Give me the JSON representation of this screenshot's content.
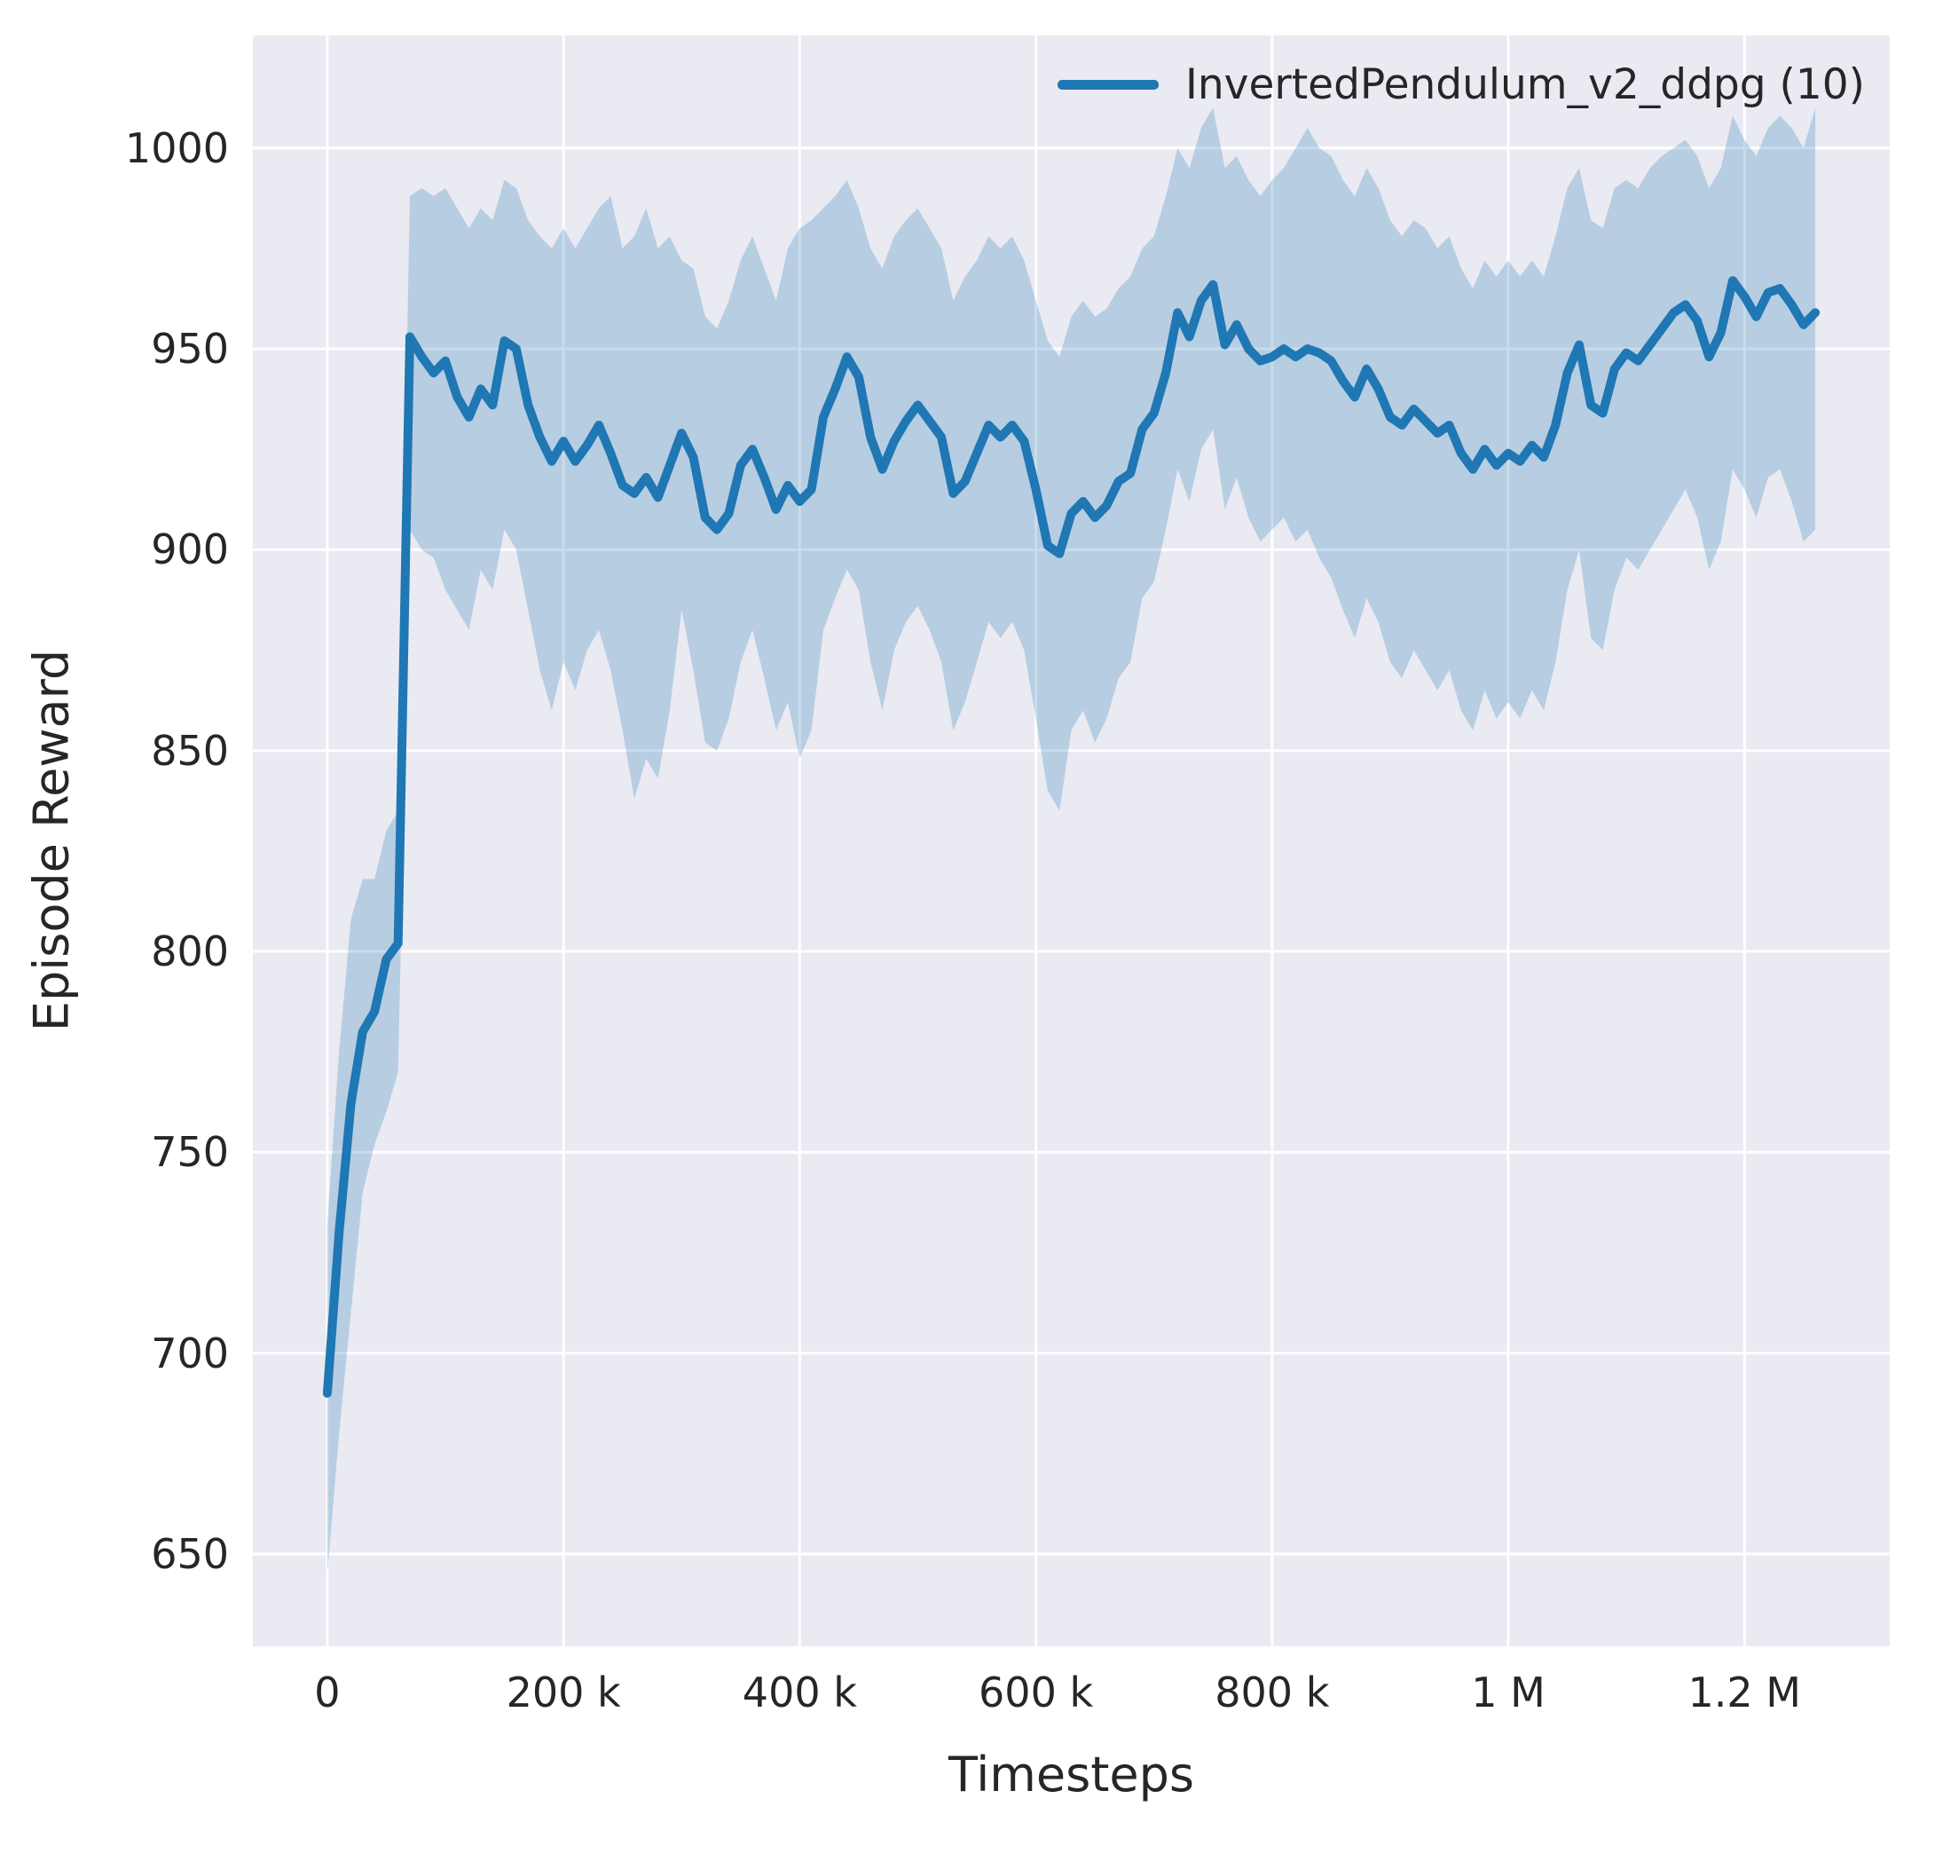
{
  "chart_data": {
    "type": "line",
    "title": "",
    "xlabel": "Timesteps",
    "ylabel": "Episode Reward",
    "legend_label": "InvertedPendulum_v2_ddpg (10)",
    "legend_position": "upper right",
    "grid": true,
    "xlim": [
      -63000,
      1323000
    ],
    "ylim": [
      627,
      1028
    ],
    "xticks": {
      "values": [
        0,
        200000,
        400000,
        600000,
        800000,
        1000000,
        1200000
      ],
      "labels": [
        "0",
        "200 k",
        "400 k",
        "600 k",
        "800 k",
        "1 M",
        "1.2 M"
      ]
    },
    "yticks": {
      "values": [
        650,
        700,
        750,
        800,
        850,
        900,
        950,
        1000
      ],
      "labels": [
        "650",
        "700",
        "750",
        "800",
        "850",
        "900",
        "950",
        "1000"
      ]
    },
    "colors": {
      "line": "#1f77b4",
      "band": "#1f77b4",
      "band_opacity": 0.25,
      "plot_background": "#eaeaf2",
      "grid": "#ffffff",
      "text": "#262626",
      "figure_background": "#ffffff"
    },
    "x": [
      0,
      10000,
      20000,
      30000,
      40000,
      50000,
      60000,
      70000,
      80000,
      90000,
      100000,
      110000,
      120000,
      130000,
      140000,
      150000,
      160000,
      170000,
      180000,
      190000,
      200000,
      210000,
      220000,
      230000,
      240000,
      250000,
      260000,
      270000,
      280000,
      290000,
      300000,
      310000,
      320000,
      330000,
      340000,
      350000,
      360000,
      370000,
      380000,
      390000,
      400000,
      410000,
      420000,
      430000,
      440000,
      450000,
      460000,
      470000,
      480000,
      490000,
      500000,
      510000,
      520000,
      530000,
      540000,
      550000,
      560000,
      570000,
      580000,
      590000,
      600000,
      610000,
      620000,
      630000,
      640000,
      650000,
      660000,
      670000,
      680000,
      690000,
      700000,
      710000,
      720000,
      730000,
      740000,
      750000,
      760000,
      770000,
      780000,
      790000,
      800000,
      810000,
      820000,
      830000,
      840000,
      850000,
      860000,
      870000,
      880000,
      890000,
      900000,
      910000,
      920000,
      930000,
      940000,
      950000,
      960000,
      970000,
      980000,
      990000,
      1000000,
      1010000,
      1020000,
      1030000,
      1040000,
      1050000,
      1060000,
      1070000,
      1080000,
      1090000,
      1100000,
      1110000,
      1120000,
      1130000,
      1140000,
      1150000,
      1160000,
      1170000,
      1180000,
      1190000,
      1200000,
      1210000,
      1220000,
      1230000,
      1240000,
      1250000,
      1260000
    ],
    "series": [
      {
        "name": "InvertedPendulum_v2_ddpg (10)",
        "mean": [
          690,
          730,
          762,
          780,
          785,
          798,
          802,
          953,
          948,
          944,
          947,
          938,
          933,
          940,
          936,
          952,
          950,
          936,
          928,
          922,
          927,
          922,
          926,
          931,
          924,
          916,
          914,
          918,
          913,
          921,
          929,
          923,
          908,
          905,
          909,
          921,
          925,
          918,
          910,
          916,
          912,
          915,
          933,
          940,
          948,
          943,
          928,
          920,
          927,
          932,
          936,
          932,
          928,
          914,
          917,
          924,
          931,
          928,
          931,
          927,
          915,
          901,
          899,
          909,
          912,
          908,
          911,
          917,
          919,
          930,
          934,
          944,
          959,
          953,
          962,
          966,
          951,
          956,
          950,
          947,
          948,
          950,
          948,
          950,
          949,
          947,
          942,
          938,
          945,
          940,
          933,
          931,
          935,
          932,
          929,
          931,
          924,
          920,
          925,
          921,
          924,
          922,
          926,
          923,
          931,
          944,
          951,
          936,
          934,
          945,
          949,
          947,
          951,
          955,
          959,
          961,
          957,
          948,
          954,
          967,
          963,
          958,
          964,
          965,
          961,
          956,
          959
        ],
        "lower": [
          645,
          680,
          710,
          740,
          752,
          760,
          770,
          905,
          900,
          898,
          890,
          885,
          880,
          895,
          890,
          905,
          900,
          885,
          870,
          860,
          872,
          865,
          875,
          880,
          870,
          855,
          838,
          848,
          843,
          860,
          885,
          870,
          852,
          850,
          858,
          872,
          880,
          868,
          855,
          862,
          848,
          855,
          880,
          888,
          895,
          890,
          872,
          860,
          875,
          882,
          886,
          880,
          872,
          855,
          862,
          872,
          882,
          878,
          882,
          875,
          858,
          840,
          835,
          855,
          860,
          852,
          858,
          868,
          872,
          888,
          892,
          905,
          920,
          912,
          925,
          930,
          910,
          918,
          908,
          902,
          905,
          908,
          902,
          905,
          898,
          893,
          885,
          878,
          888,
          882,
          872,
          868,
          875,
          870,
          865,
          870,
          860,
          855,
          865,
          858,
          862,
          858,
          865,
          860,
          872,
          890,
          900,
          878,
          875,
          890,
          898,
          895,
          900,
          905,
          910,
          915,
          908,
          895,
          902,
          920,
          915,
          908,
          918,
          920,
          912,
          902,
          905
        ],
        "upper": [
          732,
          775,
          808,
          818,
          818,
          830,
          835,
          988,
          990,
          988,
          990,
          985,
          980,
          985,
          982,
          992,
          990,
          982,
          978,
          975,
          980,
          975,
          980,
          985,
          988,
          975,
          978,
          985,
          975,
          978,
          972,
          970,
          958,
          955,
          962,
          972,
          978,
          970,
          962,
          975,
          980,
          982,
          985,
          988,
          992,
          985,
          975,
          970,
          978,
          982,
          985,
          980,
          975,
          962,
          968,
          972,
          978,
          975,
          978,
          972,
          962,
          952,
          948,
          958,
          962,
          958,
          960,
          965,
          968,
          975,
          978,
          988,
          1000,
          995,
          1005,
          1010,
          995,
          998,
          992,
          988,
          992,
          995,
          1000,
          1005,
          1000,
          998,
          992,
          988,
          995,
          990,
          982,
          978,
          982,
          980,
          975,
          978,
          970,
          965,
          972,
          968,
          972,
          968,
          972,
          968,
          978,
          990,
          995,
          982,
          980,
          990,
          992,
          990,
          995,
          998,
          1000,
          1002,
          998,
          990,
          995,
          1008,
          1002,
          998,
          1005,
          1008,
          1005,
          1000,
          1010
        ]
      }
    ]
  }
}
